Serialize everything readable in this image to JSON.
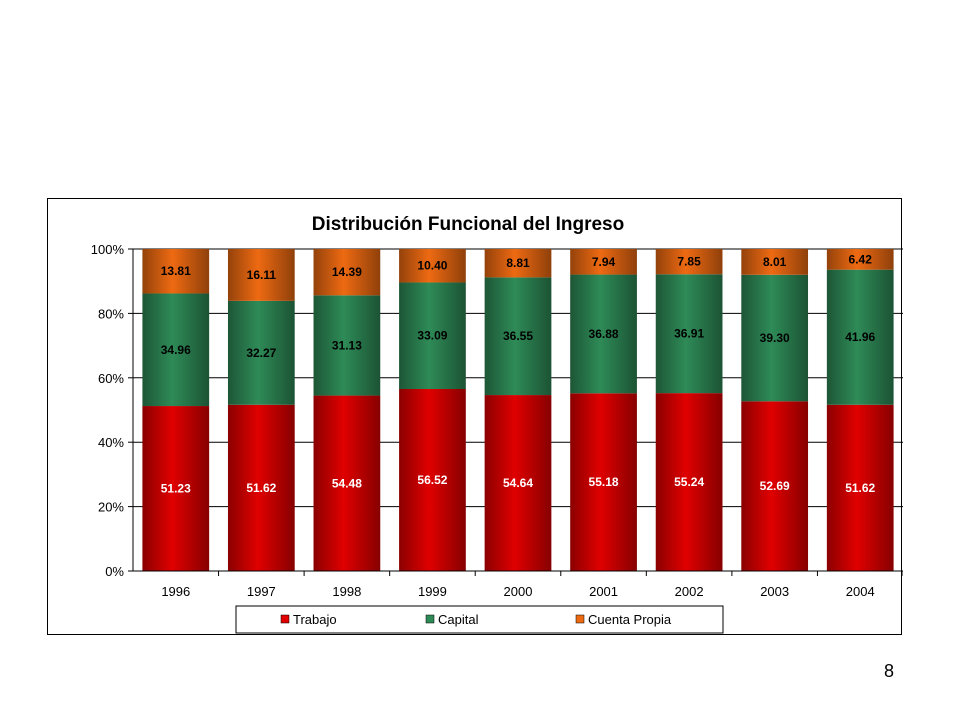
{
  "page": {
    "number": "8"
  },
  "colors": {
    "Trabajo": "#e00000",
    "Capital": "#2e8b57",
    "Cuenta Propia": "#ee6a12"
  },
  "chart_data": {
    "type": "bar",
    "stacked": true,
    "percent_stacked": true,
    "title": "Distribución Funcional del Ingreso",
    "xlabel": "",
    "ylabel": "",
    "ylim": [
      0,
      100
    ],
    "y_ticks": [
      "0%",
      "20%",
      "40%",
      "60%",
      "80%",
      "100%"
    ],
    "grid": true,
    "legend_position": "bottom",
    "categories": [
      "1996",
      "1997",
      "1998",
      "1999",
      "2000",
      "2001",
      "2002",
      "2003",
      "2004"
    ],
    "series": [
      {
        "name": "Trabajo",
        "values": [
          51.23,
          51.62,
          54.48,
          56.52,
          54.64,
          55.18,
          55.24,
          52.69,
          51.62
        ],
        "labels": [
          "51.23",
          "51.62",
          "54.48",
          "56.52",
          "54.64",
          "55.18",
          "55.24",
          "52.69",
          "51.62"
        ]
      },
      {
        "name": "Capital",
        "values": [
          34.96,
          32.27,
          31.13,
          33.09,
          36.55,
          36.88,
          36.91,
          39.3,
          41.96
        ],
        "labels": [
          "34.96",
          "32.27",
          "31.13",
          "33.09",
          "36.55",
          "36.88",
          "36.91",
          "39.30",
          "41.96"
        ]
      },
      {
        "name": "Cuenta Propia",
        "values": [
          13.81,
          16.11,
          14.39,
          10.4,
          8.81,
          7.94,
          7.85,
          8.01,
          6.42
        ],
        "labels": [
          "13.81",
          "16.11",
          "14.39",
          "10.40",
          "8.81",
          "7.94",
          "7.85",
          "8.01",
          "6.42"
        ]
      }
    ]
  }
}
